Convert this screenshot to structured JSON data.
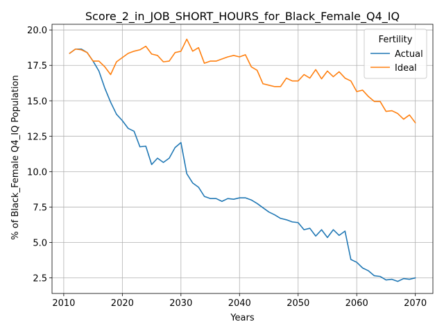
{
  "chart_data": {
    "type": "line",
    "title": "Score_2_in_JOB_SHORT_HOURS_for_Black_Female_Q4_IQ",
    "xlabel": "Years",
    "ylabel": "% of Black_Female Q4_IQ Population",
    "xlim": [
      2008,
      2073
    ],
    "ylim": [
      1.4,
      20.4
    ],
    "xticks": [
      2010,
      2020,
      2030,
      2040,
      2050,
      2060,
      2070
    ],
    "yticks": [
      2.5,
      5.0,
      7.5,
      10.0,
      12.5,
      15.0,
      17.5,
      20.0
    ],
    "ytick_labels": [
      "2.5",
      "5.0",
      "7.5",
      "10.0",
      "12.5",
      "15.0",
      "17.5",
      "20.0"
    ],
    "grid": true,
    "legend": {
      "title": "Fertility",
      "placement": "top-right"
    },
    "x": [
      2011,
      2012,
      2013,
      2014,
      2015,
      2016,
      2017,
      2018,
      2019,
      2020,
      2021,
      2022,
      2023,
      2024,
      2025,
      2026,
      2027,
      2028,
      2029,
      2030,
      2031,
      2032,
      2033,
      2034,
      2035,
      2036,
      2037,
      2038,
      2039,
      2040,
      2041,
      2042,
      2043,
      2044,
      2045,
      2046,
      2047,
      2048,
      2049,
      2050,
      2051,
      2052,
      2053,
      2054,
      2055,
      2056,
      2057,
      2058,
      2059,
      2060,
      2061,
      2062,
      2063,
      2064,
      2065,
      2066,
      2067,
      2068,
      2069,
      2070
    ],
    "series": [
      {
        "name": "Actual",
        "color": "#1f77b4",
        "values": [
          18.35,
          18.65,
          18.65,
          18.4,
          17.8,
          17.1,
          15.9,
          14.9,
          14.05,
          13.6,
          13.05,
          12.85,
          11.75,
          11.8,
          10.5,
          10.95,
          10.65,
          10.95,
          11.7,
          12.05,
          9.85,
          9.2,
          8.9,
          8.25,
          8.1,
          8.1,
          7.9,
          8.1,
          8.05,
          8.15,
          8.15,
          8.0,
          7.75,
          7.45,
          7.15,
          6.95,
          6.7,
          6.6,
          6.45,
          6.4,
          5.9,
          6.0,
          5.45,
          5.9,
          5.35,
          5.9,
          5.5,
          5.8,
          3.8,
          3.6,
          3.2,
          3.0,
          2.65,
          2.6,
          2.35,
          2.4,
          2.25,
          2.45,
          2.4,
          2.5
        ]
      },
      {
        "name": "Ideal",
        "color": "#ff7f0e",
        "values": [
          18.35,
          18.65,
          18.6,
          18.4,
          17.8,
          17.8,
          17.4,
          16.85,
          17.75,
          18.05,
          18.35,
          18.5,
          18.6,
          18.85,
          18.3,
          18.2,
          17.75,
          17.8,
          18.4,
          18.5,
          19.35,
          18.5,
          18.75,
          17.65,
          17.8,
          17.8,
          17.95,
          18.1,
          18.2,
          18.1,
          18.25,
          17.4,
          17.15,
          16.2,
          16.1,
          16.0,
          16.0,
          16.6,
          16.4,
          16.4,
          16.85,
          16.6,
          17.2,
          16.55,
          17.1,
          16.7,
          17.05,
          16.6,
          16.4,
          15.65,
          15.75,
          15.3,
          14.95,
          14.95,
          14.25,
          14.3,
          14.1,
          13.7,
          14.0,
          13.45
        ]
      }
    ]
  }
}
